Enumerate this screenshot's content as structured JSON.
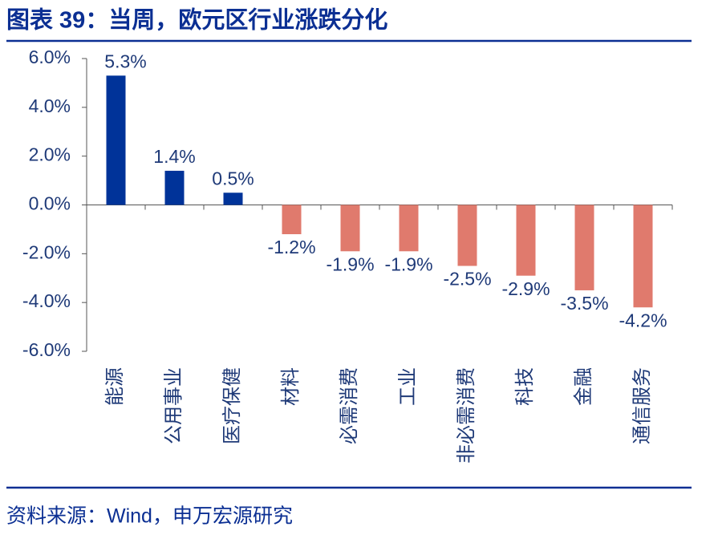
{
  "chart_data": {
    "type": "bar",
    "title": "图表 39：当周，欧元区行业涨跌分化",
    "categories": [
      "能源",
      "公用事业",
      "医疗保健",
      "材料",
      "必需消费",
      "工业",
      "非必需消费",
      "科技",
      "金融",
      "通信服务"
    ],
    "values": [
      5.3,
      1.4,
      0.5,
      -1.2,
      -1.9,
      -1.9,
      -2.5,
      -2.9,
      -3.5,
      -4.2
    ],
    "value_labels": [
      "5.3%",
      "1.4%",
      "0.5%",
      "-1.2%",
      "-1.9%",
      "-1.9%",
      "-2.5%",
      "-2.9%",
      "-3.5%",
      "-4.2%"
    ],
    "colors": [
      "#003399",
      "#003399",
      "#003399",
      "#e07a6d",
      "#e07a6d",
      "#e07a6d",
      "#e07a6d",
      "#e07a6d",
      "#e07a6d",
      "#e07a6d"
    ],
    "ylim": [
      -6,
      6
    ],
    "yticks": [
      {
        "value": 6,
        "label": "6.0%"
      },
      {
        "value": 4,
        "label": "4.0%"
      },
      {
        "value": 2,
        "label": "2.0%"
      },
      {
        "value": 0,
        "label": "0.0%"
      },
      {
        "value": -2,
        "label": "-2.0%"
      },
      {
        "value": -4,
        "label": "-4.0%"
      },
      {
        "value": -6,
        "label": "-6.0%"
      }
    ],
    "source": "资料来源：Wind，申万宏源研究"
  }
}
